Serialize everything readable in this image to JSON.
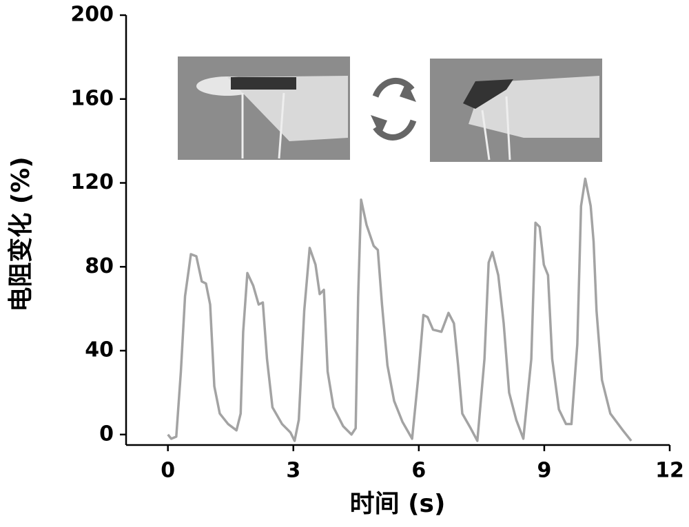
{
  "chart_data": {
    "type": "line",
    "xlabel": "时间 (s)",
    "ylabel": "电阻变化 (%)",
    "xlim": [
      -1,
      12
    ],
    "xticks": [
      0,
      3,
      6,
      9,
      12
    ],
    "ylim": [
      -5,
      200
    ],
    "yticks": [
      0,
      40,
      80,
      120,
      160,
      200
    ],
    "series": [
      {
        "color": "#a3a3a3",
        "x": [
          0,
          0.08,
          0.2,
          0.31,
          0.41,
          0.55,
          0.68,
          0.81,
          0.91,
          1.01,
          1.11,
          1.24,
          1.44,
          1.64,
          1.74,
          1.8,
          1.9,
          2.04,
          2.17,
          2.27,
          2.37,
          2.5,
          2.73,
          2.93,
          3.03,
          3.13,
          3.26,
          3.39,
          3.53,
          3.63,
          3.73,
          3.82,
          3.96,
          4.19,
          4.39,
          4.49,
          4.55,
          4.62,
          4.75,
          4.92,
          5.02,
          5.12,
          5.25,
          5.41,
          5.61,
          5.84,
          5.98,
          6.11,
          6.21,
          6.34,
          6.54,
          6.71,
          6.84,
          6.94,
          7.04,
          7.24,
          7.4,
          7.57,
          7.67,
          7.76,
          7.9,
          8.03,
          8.16,
          8.33,
          8.5,
          8.69,
          8.79,
          8.89,
          8.99,
          9.09,
          9.19,
          9.35,
          9.52,
          9.65,
          9.79,
          9.88,
          9.98,
          10.11,
          10.18,
          10.25,
          10.38,
          10.58,
          10.88,
          11.08
        ],
        "values": [
          0,
          -2,
          -1,
          30,
          66,
          86,
          85,
          73,
          72,
          62,
          23,
          10,
          5,
          2,
          10,
          49,
          77,
          71,
          62,
          63,
          36,
          13,
          5,
          1,
          -3,
          7,
          59,
          89,
          81,
          67,
          69,
          30,
          13,
          4,
          0,
          3,
          66,
          112,
          100,
          90,
          88,
          62,
          33,
          16,
          6,
          -2,
          26,
          57,
          56,
          50,
          49,
          58,
          53,
          33,
          10,
          3,
          -3,
          36,
          82,
          87,
          76,
          53,
          20,
          7,
          -2,
          36,
          101,
          99,
          81,
          76,
          36,
          12,
          5,
          5,
          43,
          109,
          122,
          109,
          92,
          59,
          26,
          10,
          2,
          -3
        ]
      }
    ]
  }
}
